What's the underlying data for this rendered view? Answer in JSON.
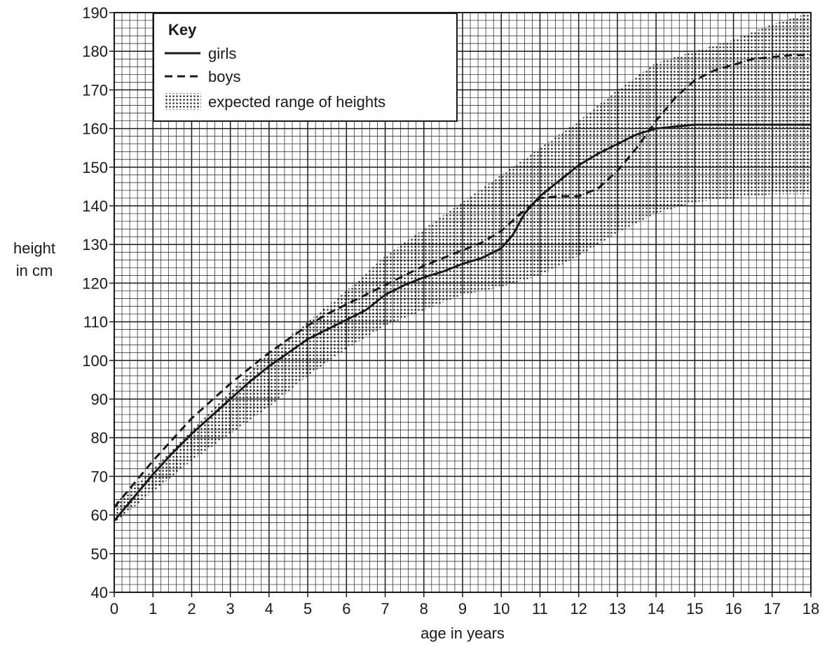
{
  "chart_data": {
    "type": "line",
    "xlabel": "age in years",
    "ylabel_lines": [
      "height",
      "in cm"
    ],
    "xlim": [
      0,
      18
    ],
    "ylim": [
      40,
      190
    ],
    "x_ticks": [
      0,
      1,
      2,
      3,
      4,
      5,
      6,
      7,
      8,
      9,
      10,
      11,
      12,
      13,
      14,
      15,
      16,
      17,
      18
    ],
    "y_ticks": [
      40,
      50,
      60,
      70,
      80,
      90,
      100,
      110,
      120,
      130,
      140,
      150,
      160,
      170,
      180,
      190
    ],
    "grid": true,
    "legend": {
      "title": "Key",
      "placement": "top-left",
      "entries": [
        {
          "label": "girls",
          "style": "solid"
        },
        {
          "label": "boys",
          "style": "dashed"
        },
        {
          "label": "expected range of heights",
          "style": "dotted-fill"
        }
      ]
    },
    "series": [
      {
        "name": "girls",
        "style": "solid",
        "x": [
          0,
          0.5,
          1,
          1.5,
          2,
          2.5,
          3,
          3.5,
          4,
          4.5,
          5,
          5.5,
          6,
          6.5,
          7,
          7.5,
          8,
          8.5,
          9,
          9.5,
          10,
          10.3,
          10.6,
          11,
          11.5,
          12,
          12.5,
          13,
          13.5,
          14,
          14.5,
          15,
          16,
          17,
          18
        ],
        "y": [
          58.5,
          64.5,
          70.5,
          76,
          81,
          85.5,
          90,
          94.5,
          98.5,
          102,
          105.5,
          108,
          110.5,
          113,
          117,
          119.5,
          121.5,
          123,
          125,
          126.5,
          129,
          132.5,
          138,
          142.5,
          146.5,
          150.5,
          153.5,
          156,
          158.5,
          160,
          160.5,
          161,
          161,
          161,
          161
        ]
      },
      {
        "name": "boys",
        "style": "dashed",
        "x": [
          0,
          0.5,
          1,
          1.5,
          2,
          2.5,
          3,
          3.5,
          4,
          4.5,
          5,
          5.5,
          6,
          6.5,
          7,
          7.5,
          8,
          8.5,
          9,
          9.5,
          10,
          10.5,
          11,
          11.5,
          12,
          12.5,
          13,
          13.5,
          14,
          14.5,
          15,
          15.5,
          16,
          16.5,
          17,
          17.5,
          18
        ],
        "y": [
          62,
          68,
          74,
          79.5,
          85,
          89.5,
          94,
          98,
          102,
          105.5,
          109,
          112,
          114.5,
          117,
          119.5,
          122,
          124.5,
          126.5,
          128.5,
          130.5,
          133.5,
          138,
          142,
          142.5,
          142.5,
          144.5,
          149,
          155,
          162,
          168,
          172.5,
          175,
          176.5,
          178,
          178.5,
          179,
          179
        ]
      }
    ],
    "expected_range": {
      "name": "expected range of heights",
      "x": [
        0,
        1,
        2,
        3,
        4,
        5,
        6,
        7,
        8,
        9,
        10,
        11,
        12,
        13,
        14,
        15,
        16,
        17,
        18
      ],
      "lower": [
        58,
        66,
        74,
        81,
        88,
        96,
        103,
        109,
        113,
        117,
        119,
        122,
        127,
        133,
        138,
        141,
        142,
        143,
        143
      ],
      "upper": [
        63,
        72,
        82,
        92,
        102,
        110,
        118,
        127,
        134,
        141,
        148,
        155,
        162,
        170,
        177,
        180,
        183,
        187,
        190
      ]
    }
  }
}
